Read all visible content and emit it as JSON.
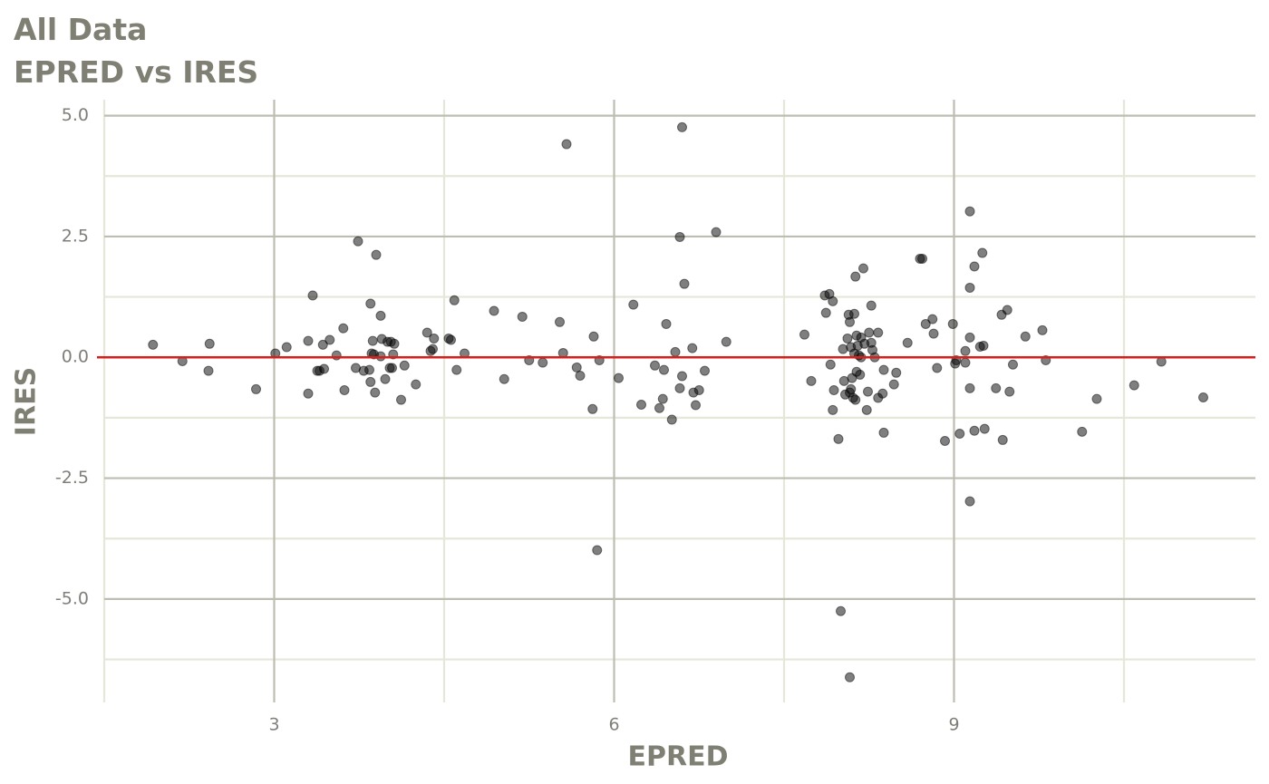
{
  "chart_data": {
    "type": "scatter",
    "title": "All Data",
    "subtitle": "EPRED vs IRES",
    "x_label": "EPRED",
    "y_label": "IRES",
    "xlim": [
      1.5,
      11.66
    ],
    "ylim": [
      -7.14,
      5.33
    ],
    "xticks": [
      3,
      6,
      9
    ],
    "yticks": [
      {
        "value": 5,
        "label": "5.0"
      },
      2.5,
      {
        "value": 0,
        "label": "0.0"
      },
      -2.5,
      {
        "value": -5,
        "label": "-5.0"
      }
    ],
    "xminor": [
      1.5,
      4.5,
      7.5,
      10.5
    ],
    "yminor": [
      3.75,
      1.25,
      -1.25,
      -3.75,
      -6.25
    ],
    "grid": true,
    "reference_line": {
      "value": 0,
      "color": "#dd1c1c"
    },
    "series": [
      {
        "color": "#000000",
        "alpha": 0.5,
        "x": [
          1.93,
          2.19,
          2.42,
          2.43,
          2.84,
          3.01,
          3.11,
          3.3,
          3.3,
          3.34,
          3.38,
          3.4,
          3.44,
          3.43,
          3.49,
          3.55,
          3.61,
          3.62,
          3.72,
          3.74,
          3.79,
          3.84,
          3.85,
          3.85,
          3.86,
          3.87,
          3.88,
          3.89,
          3.9,
          3.94,
          3.94,
          3.95,
          3.98,
          4.0,
          4.02,
          4.03,
          4.04,
          4.05,
          4.06,
          4.12,
          4.15,
          4.25,
          4.35,
          4.38,
          4.4,
          4.41,
          4.54,
          4.56,
          4.59,
          4.61,
          4.68,
          4.94,
          5.03,
          5.19,
          5.25,
          5.37,
          5.52,
          5.55,
          5.58,
          5.67,
          5.7,
          5.81,
          5.82,
          5.85,
          5.87,
          6.04,
          6.17,
          6.24,
          6.36,
          6.4,
          6.43,
          6.44,
          6.46,
          6.51,
          6.54,
          6.58,
          6.58,
          6.6,
          6.6,
          6.62,
          6.69,
          6.7,
          6.72,
          6.75,
          6.8,
          6.9,
          6.99,
          7.68,
          7.74,
          7.86,
          7.87,
          7.9,
          7.91,
          7.93,
          7.93,
          7.94,
          7.98,
          8.0,
          8.02,
          8.03,
          8.04,
          8.06,
          8.07,
          8.08,
          8.08,
          8.08,
          8.09,
          8.09,
          8.1,
          8.11,
          8.12,
          8.12,
          8.13,
          8.13,
          8.14,
          8.14,
          8.15,
          8.16,
          8.17,
          8.18,
          8.18,
          8.2,
          8.21,
          8.23,
          8.24,
          8.25,
          8.27,
          8.27,
          8.28,
          8.3,
          8.33,
          8.33,
          8.37,
          8.38,
          8.38,
          8.47,
          8.49,
          8.59,
          8.7,
          8.72,
          8.75,
          8.81,
          8.82,
          8.85,
          8.92,
          8.99,
          9.01,
          9.02,
          9.05,
          9.1,
          9.1,
          9.14,
          9.14,
          9.14,
          9.14,
          9.14,
          9.18,
          9.18,
          9.23,
          9.25,
          9.26,
          9.27,
          9.37,
          9.42,
          9.43,
          9.47,
          9.49,
          9.52,
          9.63,
          9.78,
          9.81,
          10.13,
          10.26,
          10.59,
          10.83,
          11.2
        ],
        "values": [
          0.26,
          -0.08,
          -0.28,
          0.28,
          -0.66,
          0.08,
          0.21,
          -0.75,
          0.34,
          1.28,
          -0.28,
          -0.28,
          -0.24,
          0.26,
          0.36,
          0.04,
          0.6,
          -0.68,
          -0.22,
          2.4,
          -0.28,
          -0.26,
          1.11,
          -0.51,
          0.08,
          0.34,
          0.06,
          -0.73,
          2.12,
          0.86,
          0.02,
          0.38,
          -0.45,
          0.32,
          -0.22,
          0.32,
          -0.22,
          0.06,
          0.28,
          -0.88,
          -0.17,
          -0.56,
          0.51,
          0.13,
          0.17,
          0.39,
          0.39,
          0.36,
          1.18,
          -0.26,
          0.08,
          0.96,
          -0.45,
          0.84,
          -0.06,
          -0.11,
          0.73,
          0.09,
          4.41,
          -0.21,
          -0.38,
          -1.07,
          0.43,
          -3.99,
          -0.06,
          -0.43,
          1.09,
          -0.98,
          -0.17,
          -1.05,
          -0.86,
          -0.26,
          0.69,
          -1.29,
          0.11,
          2.49,
          -0.64,
          4.76,
          -0.39,
          1.52,
          0.19,
          -0.73,
          -0.99,
          -0.68,
          -0.28,
          2.59,
          0.32,
          0.47,
          -0.49,
          1.28,
          0.92,
          1.31,
          -0.15,
          1.16,
          -1.09,
          -0.68,
          -1.69,
          -5.25,
          0.17,
          -0.49,
          -0.77,
          0.39,
          0.88,
          -0.73,
          -6.62,
          0.73,
          -0.66,
          0.21,
          -0.43,
          -0.84,
          0.08,
          0.9,
          1.67,
          -0.88,
          -0.3,
          0.45,
          0.24,
          0.04,
          -0.36,
          0.41,
          0.0,
          1.84,
          0.28,
          -1.09,
          -0.71,
          0.51,
          1.07,
          0.3,
          0.15,
          0.0,
          0.51,
          -0.84,
          -0.75,
          -0.26,
          -1.56,
          -0.56,
          -0.32,
          0.3,
          2.04,
          2.04,
          0.69,
          0.79,
          0.49,
          -0.22,
          -1.73,
          0.69,
          -0.13,
          -0.06,
          -1.58,
          0.13,
          -0.11,
          1.44,
          -0.64,
          3.02,
          0.41,
          -2.98,
          1.88,
          -1.52,
          0.22,
          2.16,
          0.24,
          -1.48,
          -0.64,
          0.88,
          -1.71,
          0.98,
          -0.71,
          -0.15,
          0.43,
          0.56,
          -0.06,
          -1.54,
          -0.86,
          -0.58,
          -0.09,
          -0.83
        ]
      }
    ]
  }
}
